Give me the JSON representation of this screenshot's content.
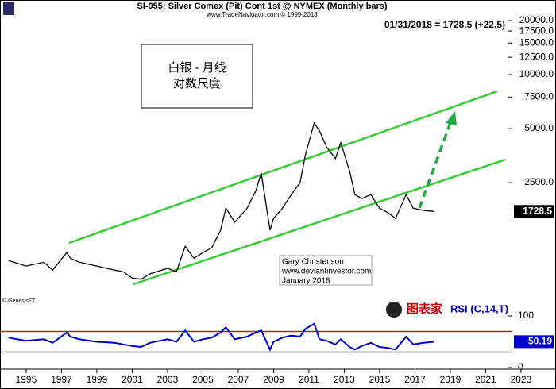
{
  "chart_data": [
    {
      "type": "line",
      "title": "SI-055:  Silver Comex (Pit) Cont 1st @ NYMEX  (Monthly bars)",
      "subtitle": "www.TradeNavigator.com © 1999-2018",
      "header": "01/31/2018 = 1728.5 (+22.5)",
      "annotations": {
        "box_line_1": "白银 - 月线",
        "box_line_2": "对数尺度",
        "author": "Gary Christenson",
        "site": "www.deviantinvestor.com",
        "date": "January 2018",
        "source": "© GenesisFT",
        "logo": "图表家"
      },
      "log_scale": true,
      "xlim": [
        1993.52,
        2024.98
      ],
      "ylim": [
        490,
        21700
      ],
      "yticks": [
        {
          "value": 2500,
          "label": "2500.0"
        },
        {
          "value": 5000,
          "label": "5000.0"
        },
        {
          "value": 7500,
          "label": "7500.0"
        },
        {
          "value": 10000,
          "label": "10000.0"
        },
        {
          "value": 12500,
          "label": "12500.0"
        },
        {
          "value": 15000,
          "label": "15000.0"
        },
        {
          "value": 17500,
          "label": "17500.0"
        },
        {
          "value": 20000,
          "label": "20000.0"
        }
      ],
      "x": [
        1994.0,
        1995.0,
        1996.0,
        1996.5,
        1997.3,
        1997.5,
        1998.0,
        1999.0,
        2000.0,
        2000.5,
        2001.0,
        2001.5,
        2002.0,
        2003.0,
        2003.5,
        2004.0,
        2004.5,
        2005.0,
        2005.5,
        2006.0,
        2006.3,
        2006.8,
        2007.5,
        2008.0,
        2008.3,
        2008.8,
        2009.0,
        2009.5,
        2010.0,
        2010.5,
        2010.8,
        2011.3,
        2011.6,
        2012.0,
        2012.5,
        2012.8,
        2013.3,
        2013.6,
        2014.0,
        2014.5,
        2015.0,
        2015.5,
        2015.9,
        2016.5,
        2016.9,
        2017.5,
        2018.08
      ],
      "series": [
        {
          "color": "#000000",
          "values": [
            920,
            857,
            900,
            814,
            1020,
            947,
            900,
            857,
            814,
            797,
            735,
            723,
            775,
            832,
            797,
            1104,
            947,
            1020,
            1083,
            1358,
            1803,
            1505,
            1800,
            2257,
            2826,
            1358,
            1580,
            1800,
            2145,
            2500,
            3572,
            5370,
            4850,
            3950,
            3400,
            4170,
            2912,
            2145,
            2037,
            2145,
            1800,
            1693,
            1580,
            2145,
            1800,
            1750,
            1728.5
          ]
        }
      ]
    },
    {
      "type": "line",
      "title": "RSI (C,14,T)",
      "xlim": [
        1993.52,
        2024.98
      ],
      "xticks": [
        1995,
        1997,
        1999,
        2001,
        2003,
        2005,
        2007,
        2009,
        2011,
        2013,
        2015,
        2017,
        2019,
        2021,
        2023
      ],
      "ylim": [
        0,
        100
      ],
      "yticks": [
        0,
        100
      ],
      "hlines": [
        {
          "value": 70,
          "color": "#b22222"
        },
        {
          "value": 30,
          "color": "#666666"
        }
      ],
      "x": [
        1994.0,
        1995.0,
        1996.0,
        1996.5,
        1997.3,
        1997.5,
        1998.0,
        1999.0,
        2000.0,
        2000.5,
        2001.0,
        2001.5,
        2002.0,
        2003.0,
        2003.5,
        2004.0,
        2004.5,
        2005.0,
        2005.5,
        2006.0,
        2006.3,
        2006.8,
        2007.5,
        2008.0,
        2008.3,
        2008.8,
        2009.0,
        2009.5,
        2010.0,
        2010.5,
        2010.8,
        2011.3,
        2011.6,
        2012.0,
        2012.5,
        2012.8,
        2013.3,
        2013.6,
        2014.0,
        2014.5,
        2015.0,
        2015.5,
        2015.9,
        2016.5,
        2016.9,
        2017.5,
        2018.08
      ],
      "series": [
        {
          "color": "#0000cc",
          "values": [
            58,
            52,
            55,
            48,
            68,
            60,
            55,
            50,
            48,
            45,
            42,
            40,
            48,
            55,
            50,
            72,
            50,
            55,
            58,
            68,
            78,
            55,
            60,
            68,
            72,
            35,
            50,
            58,
            62,
            60,
            75,
            85,
            55,
            52,
            45,
            55,
            40,
            35,
            42,
            48,
            40,
            38,
            35,
            60,
            45,
            48,
            50.19
          ]
        }
      ]
    }
  ]
}
